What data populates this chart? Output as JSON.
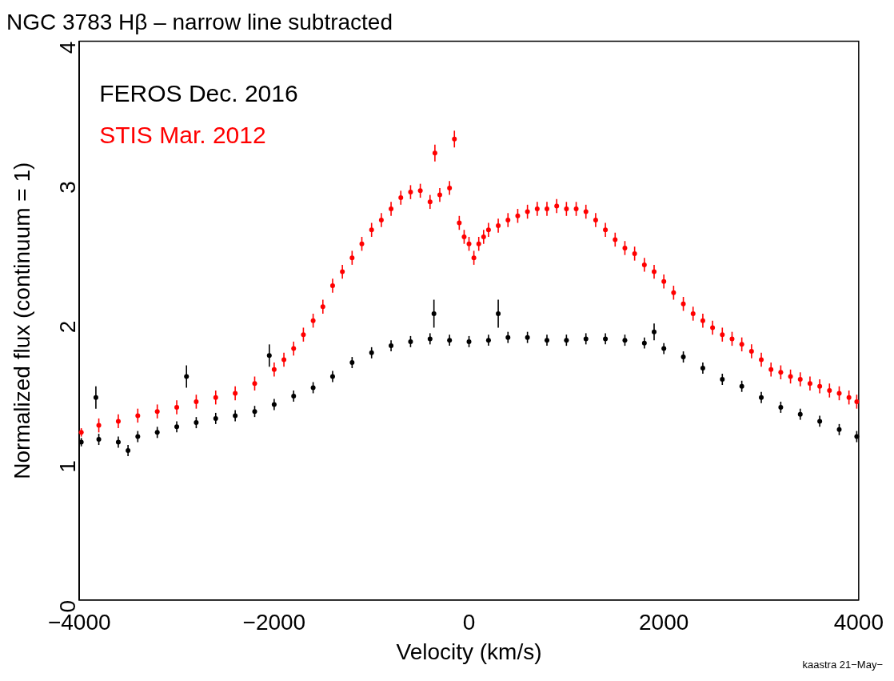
{
  "chart_data": {
    "type": "scatter",
    "title": "NGC 3783 Hβ – narrow line subtracted",
    "xlabel": "Velocity (km/s)",
    "ylabel": "Normalized flux (continuum = 1)",
    "xlim": [
      -4000,
      4000
    ],
    "xticks": [
      -4000,
      -2000,
      0,
      2000,
      4000
    ],
    "ylim": [
      0,
      4
    ],
    "yticks": [
      0,
      1,
      2,
      3,
      4
    ],
    "grid": false,
    "marker": "circle",
    "annotations": [
      "kaastra 21−May−"
    ],
    "series": [
      {
        "name": "FEROS Dec. 2016",
        "color": "#000000",
        "x": [
          -3980,
          -3830,
          -3800,
          -3600,
          -3500,
          -3400,
          -3200,
          -3000,
          -2900,
          -2800,
          -2600,
          -2400,
          -2200,
          -2050,
          -2000,
          -1800,
          -1600,
          -1400,
          -1200,
          -1000,
          -800,
          -600,
          -400,
          -360,
          -200,
          0,
          200,
          300,
          400,
          600,
          800,
          1000,
          1200,
          1400,
          1600,
          1800,
          1900,
          2000,
          2200,
          2400,
          2600,
          2800,
          3000,
          3200,
          3400,
          3600,
          3800,
          3980
        ],
        "values": [
          1.13,
          1.45,
          1.15,
          1.13,
          1.07,
          1.17,
          1.2,
          1.24,
          1.6,
          1.27,
          1.3,
          1.32,
          1.35,
          1.75,
          1.4,
          1.46,
          1.52,
          1.6,
          1.7,
          1.77,
          1.82,
          1.85,
          1.87,
          2.05,
          1.86,
          1.85,
          1.86,
          2.05,
          1.88,
          1.88,
          1.86,
          1.86,
          1.87,
          1.87,
          1.86,
          1.84,
          1.92,
          1.8,
          1.74,
          1.66,
          1.58,
          1.53,
          1.45,
          1.38,
          1.33,
          1.28,
          1.22,
          1.17
        ],
        "errors": [
          0.03,
          0.08,
          0.04,
          0.04,
          0.04,
          0.04,
          0.04,
          0.04,
          0.08,
          0.04,
          0.04,
          0.04,
          0.04,
          0.08,
          0.04,
          0.04,
          0.04,
          0.04,
          0.04,
          0.04,
          0.04,
          0.04,
          0.04,
          0.1,
          0.04,
          0.04,
          0.04,
          0.1,
          0.04,
          0.04,
          0.04,
          0.04,
          0.04,
          0.04,
          0.04,
          0.04,
          0.06,
          0.04,
          0.04,
          0.04,
          0.04,
          0.04,
          0.04,
          0.04,
          0.04,
          0.04,
          0.04,
          0.04
        ]
      },
      {
        "name": "STIS Mar. 2012",
        "color": "#ff0000",
        "x": [
          -3980,
          -3800,
          -3600,
          -3400,
          -3200,
          -3000,
          -2800,
          -2600,
          -2400,
          -2200,
          -2000,
          -1900,
          -1800,
          -1700,
          -1600,
          -1500,
          -1400,
          -1300,
          -1200,
          -1100,
          -1000,
          -900,
          -800,
          -700,
          -600,
          -500,
          -400,
          -350,
          -300,
          -200,
          -150,
          -100,
          -50,
          0,
          50,
          100,
          150,
          200,
          300,
          400,
          500,
          600,
          700,
          800,
          900,
          1000,
          1100,
          1200,
          1300,
          1400,
          1500,
          1600,
          1700,
          1800,
          1900,
          2000,
          2100,
          2200,
          2300,
          2400,
          2500,
          2600,
          2700,
          2800,
          2900,
          3000,
          3100,
          3200,
          3300,
          3400,
          3500,
          3600,
          3700,
          3800,
          3900,
          3980
        ],
        "values": [
          1.2,
          1.25,
          1.28,
          1.32,
          1.35,
          1.38,
          1.42,
          1.45,
          1.48,
          1.55,
          1.65,
          1.72,
          1.8,
          1.9,
          2.0,
          2.1,
          2.25,
          2.35,
          2.45,
          2.55,
          2.65,
          2.72,
          2.8,
          2.88,
          2.92,
          2.93,
          2.85,
          3.2,
          2.9,
          2.95,
          3.3,
          2.7,
          2.6,
          2.55,
          2.45,
          2.55,
          2.6,
          2.65,
          2.68,
          2.72,
          2.75,
          2.78,
          2.8,
          2.8,
          2.82,
          2.8,
          2.8,
          2.78,
          2.72,
          2.65,
          2.58,
          2.52,
          2.48,
          2.4,
          2.35,
          2.28,
          2.2,
          2.12,
          2.05,
          2.0,
          1.95,
          1.9,
          1.87,
          1.83,
          1.78,
          1.72,
          1.65,
          1.63,
          1.6,
          1.58,
          1.55,
          1.53,
          1.5,
          1.48,
          1.45,
          1.42
        ],
        "errors": [
          0.03,
          0.05,
          0.05,
          0.05,
          0.05,
          0.05,
          0.05,
          0.05,
          0.05,
          0.05,
          0.05,
          0.05,
          0.05,
          0.05,
          0.05,
          0.05,
          0.05,
          0.05,
          0.05,
          0.05,
          0.05,
          0.05,
          0.05,
          0.05,
          0.05,
          0.05,
          0.05,
          0.06,
          0.05,
          0.05,
          0.06,
          0.05,
          0.05,
          0.05,
          0.05,
          0.05,
          0.05,
          0.05,
          0.05,
          0.05,
          0.05,
          0.05,
          0.05,
          0.05,
          0.05,
          0.05,
          0.05,
          0.05,
          0.05,
          0.05,
          0.05,
          0.05,
          0.05,
          0.05,
          0.05,
          0.05,
          0.05,
          0.05,
          0.05,
          0.05,
          0.05,
          0.05,
          0.05,
          0.05,
          0.05,
          0.05,
          0.05,
          0.05,
          0.05,
          0.05,
          0.05,
          0.05,
          0.05,
          0.05,
          0.05,
          0.05
        ]
      }
    ]
  }
}
